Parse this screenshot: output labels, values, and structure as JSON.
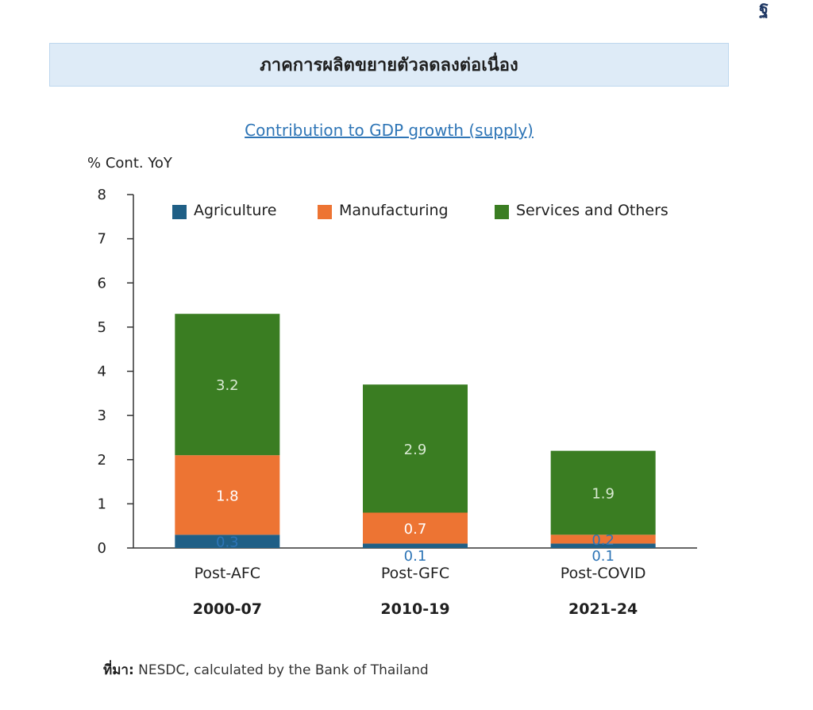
{
  "corner_glyph": "ฐ",
  "header": {
    "title": "ภาคการผลิตขยายตัวลดลงต่อเนื่อง"
  },
  "source": {
    "label": "ที่มา:",
    "text": " NESDC, calculated by the Bank of Thailand"
  },
  "chart_data": {
    "type": "bar",
    "stacked": true,
    "title": "Contribution to GDP growth (supply)",
    "ylabel": "% Cont. YoY",
    "ylim": [
      0,
      8
    ],
    "yticks": [
      0,
      1,
      2,
      3,
      4,
      5,
      6,
      7,
      8
    ],
    "categories": [
      "Post-AFC",
      "Post-GFC",
      "Post-COVID"
    ],
    "subcategories": [
      "2000-07",
      "2010-19",
      "2021-24"
    ],
    "legend_position": "top",
    "grid": false,
    "series": [
      {
        "name": "Agriculture",
        "color": "#1f5f86",
        "values": [
          0.3,
          0.1,
          0.1
        ]
      },
      {
        "name": "Manufacturing",
        "color": "#ed7433",
        "values": [
          1.8,
          0.7,
          0.2
        ]
      },
      {
        "name": "Services and Others",
        "color": "#3a7d22",
        "values": [
          3.2,
          2.9,
          1.9
        ]
      }
    ],
    "label_colors": {
      "inside_light": "#d9ead3",
      "inside_white": "#ffffff",
      "small_value": "#2e75b6"
    }
  }
}
